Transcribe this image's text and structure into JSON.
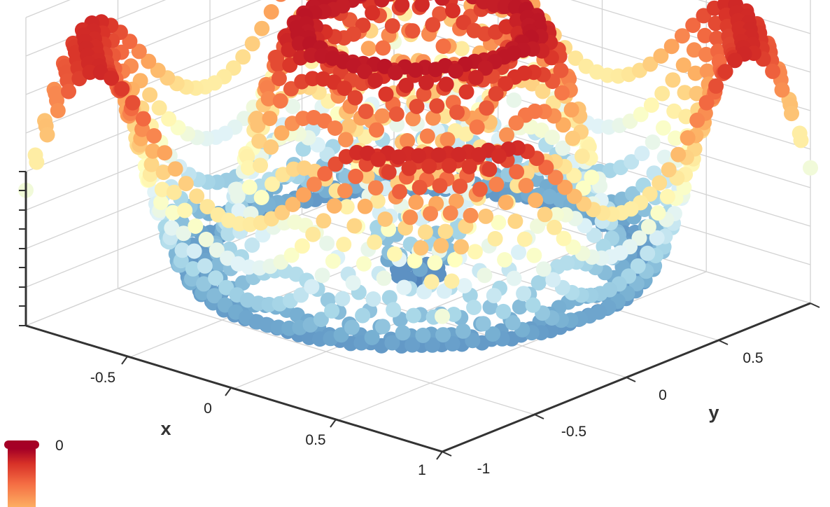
{
  "chart_data": {
    "type": "scatter",
    "subtype": "3d-scatter-surface",
    "title": "",
    "xlabel": "x",
    "ylabel": "y",
    "zlabel": "",
    "xlim": [
      -1,
      1
    ],
    "ylim": [
      -1,
      1
    ],
    "x_ticks": [
      "-0.5",
      "0",
      "0.5",
      "1"
    ],
    "y_ticks": [
      "-1",
      "-0.5",
      "0",
      "0.5"
    ],
    "grid": true,
    "colormap": "red-yellow-blue (reversed RdYlBu)",
    "colormap_stops": [
      "#a50026",
      "#d73027",
      "#f46d43",
      "#fdae61",
      "#fee090",
      "#ffffbf",
      "#e0f3f8",
      "#abd9e9",
      "#74add1",
      "#4575b4"
    ],
    "colorbar": {
      "ticks": [
        "0"
      ],
      "placement": "bottom-left"
    },
    "surface": "radially symmetric rippling surface z = f(sqrt(x^2 + y^2)) sampled on a 40 x 40 grid over [-1,1] x [-1,1]",
    "grid_samples": 40
  }
}
